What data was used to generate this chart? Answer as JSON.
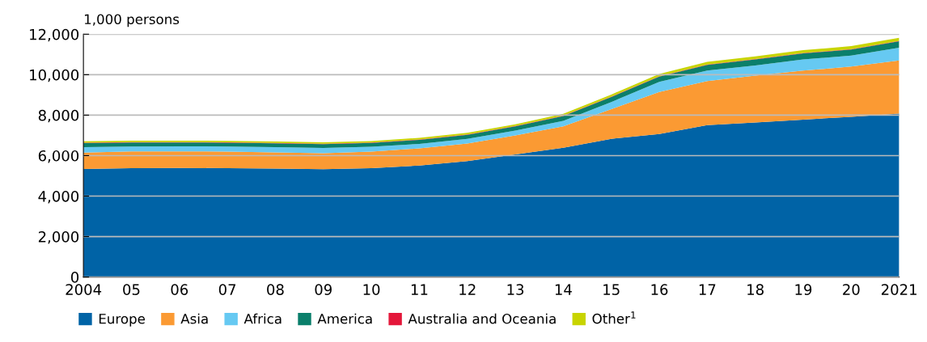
{
  "chart_data": {
    "type": "area",
    "stacked": true,
    "ylabel": "1,000 persons",
    "x": [
      2004,
      2005,
      2006,
      2007,
      2008,
      2009,
      2010,
      2011,
      2012,
      2013,
      2014,
      2015,
      2016,
      2017,
      2018,
      2019,
      2020,
      2021
    ],
    "xlim": [
      2004,
      2021
    ],
    "xticks": [
      {
        "value": 2004,
        "label": "2004"
      },
      {
        "value": 2005,
        "label": "05"
      },
      {
        "value": 2006,
        "label": "06"
      },
      {
        "value": 2007,
        "label": "07"
      },
      {
        "value": 2008,
        "label": "08"
      },
      {
        "value": 2009,
        "label": "09"
      },
      {
        "value": 2010,
        "label": "10"
      },
      {
        "value": 2011,
        "label": "11"
      },
      {
        "value": 2012,
        "label": "12"
      },
      {
        "value": 2013,
        "label": "13"
      },
      {
        "value": 2014,
        "label": "14"
      },
      {
        "value": 2015,
        "label": "15"
      },
      {
        "value": 2016,
        "label": "16"
      },
      {
        "value": 2017,
        "label": "17"
      },
      {
        "value": 2018,
        "label": "18"
      },
      {
        "value": 2019,
        "label": "19"
      },
      {
        "value": 2020,
        "label": "20"
      },
      {
        "value": 2021,
        "label": "2021"
      }
    ],
    "ylim": [
      0,
      12000
    ],
    "yticks": [
      {
        "value": 0,
        "label": "0"
      },
      {
        "value": 2000,
        "label": "2,000"
      },
      {
        "value": 4000,
        "label": "4,000"
      },
      {
        "value": 6000,
        "label": "6,000"
      },
      {
        "value": 8000,
        "label": "8,000"
      },
      {
        "value": 10000,
        "label": "10,000"
      },
      {
        "value": 12000,
        "label": "12,000"
      }
    ],
    "grid": "y",
    "legend": "bottom",
    "series": [
      {
        "name": "Europe",
        "color": "#0063a6",
        "values": [
          5340,
          5380,
          5390,
          5380,
          5360,
          5330,
          5380,
          5510,
          5730,
          6060,
          6390,
          6830,
          7070,
          7510,
          7640,
          7780,
          7920,
          8080
        ]
      },
      {
        "name": "Asia",
        "color": "#fb9a33",
        "values": [
          810,
          830,
          820,
          820,
          800,
          790,
          820,
          850,
          870,
          940,
          1060,
          1470,
          2080,
          2170,
          2310,
          2420,
          2480,
          2620
        ]
      },
      {
        "name": "Africa",
        "color": "#66c9f2",
        "values": [
          270,
          240,
          250,
          250,
          260,
          260,
          240,
          220,
          230,
          240,
          270,
          350,
          490,
          520,
          500,
          550,
          540,
          630
        ]
      },
      {
        "name": "America",
        "color": "#0b7f6b",
        "values": [
          200,
          200,
          190,
          190,
          190,
          190,
          190,
          200,
          200,
          210,
          240,
          250,
          260,
          280,
          300,
          300,
          300,
          320
        ]
      },
      {
        "name": "Australia and Oceania",
        "color": "#e4173a",
        "values": [
          20,
          20,
          20,
          20,
          20,
          20,
          20,
          20,
          20,
          20,
          20,
          20,
          20,
          20,
          20,
          20,
          20,
          20
        ]
      },
      {
        "name": "Other$^{1}$",
        "color": "#c8d400",
        "values": [
          70,
          70,
          70,
          70,
          70,
          70,
          70,
          80,
          80,
          80,
          90,
          100,
          110,
          130,
          130,
          140,
          150,
          150
        ]
      }
    ]
  }
}
